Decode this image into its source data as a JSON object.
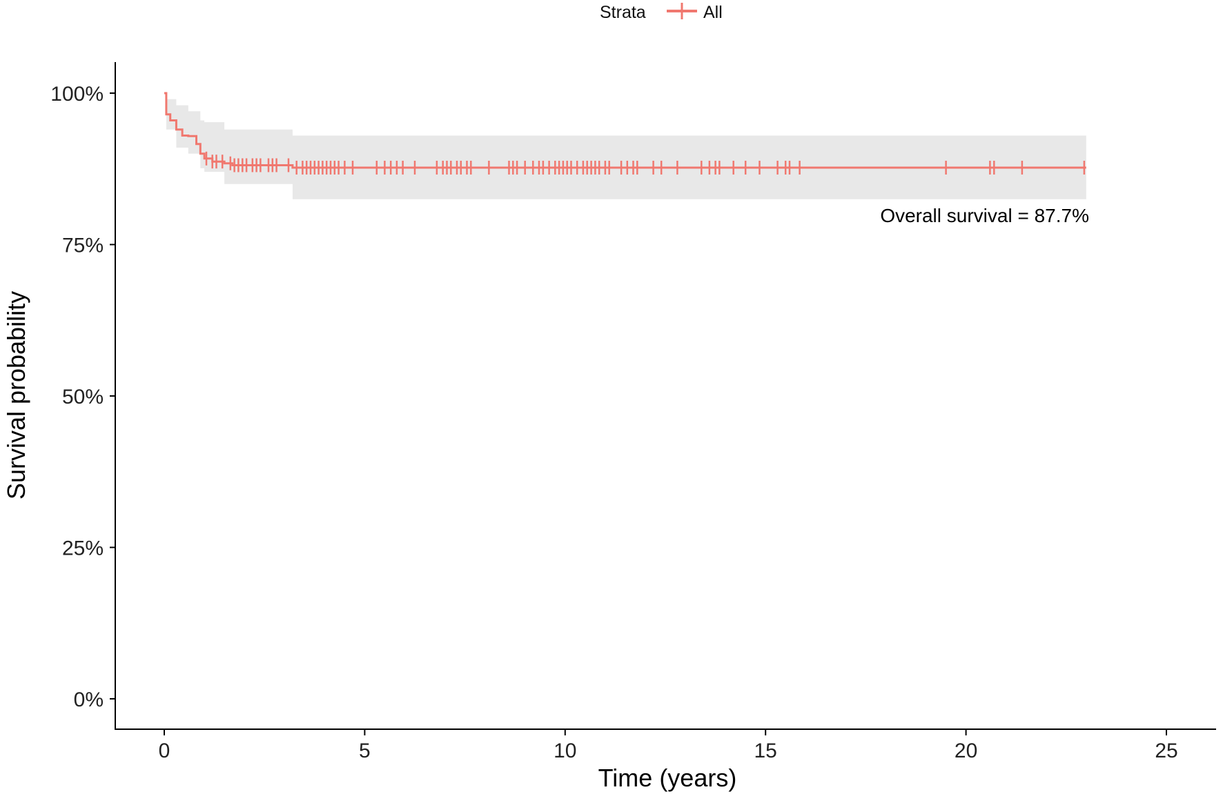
{
  "chart_data": {
    "type": "line",
    "subtype": "kaplan-meier",
    "xlabel": "Time (years)",
    "ylabel": "Survival probability",
    "xlim": [
      -1.2,
      26.2
    ],
    "ylim": [
      0,
      1
    ],
    "x_ticks": [
      0,
      5,
      10,
      15,
      20,
      25
    ],
    "y_ticks": [
      0,
      0.25,
      0.5,
      0.75,
      1.0
    ],
    "y_tick_labels": [
      "0%",
      "25%",
      "50%",
      "75%",
      "100%"
    ],
    "grid": false,
    "legend": {
      "title": "Strata",
      "position": "top",
      "entries": [
        "All"
      ]
    },
    "annotation": "Overall survival = 87.7%",
    "colors": {
      "line": "#F0786F",
      "ci_band": "#E8E8E8",
      "axis": "#000000"
    },
    "series": [
      {
        "name": "All",
        "steps": [
          [
            0.0,
            1.0
          ],
          [
            0.05,
            0.965
          ],
          [
            0.15,
            0.955
          ],
          [
            0.3,
            0.94
          ],
          [
            0.45,
            0.93
          ],
          [
            0.6,
            0.929
          ],
          [
            0.8,
            0.916
          ],
          [
            0.9,
            0.9
          ],
          [
            1.0,
            0.892
          ],
          [
            1.2,
            0.887
          ],
          [
            1.5,
            0.884
          ],
          [
            1.7,
            0.881
          ],
          [
            3.2,
            0.877
          ],
          [
            23.0,
            0.877
          ]
        ],
        "ci_steps": [
          [
            0.0,
            1.0,
            1.0
          ],
          [
            0.05,
            0.99,
            0.94
          ],
          [
            0.3,
            0.98,
            0.91
          ],
          [
            0.6,
            0.97,
            0.9
          ],
          [
            0.9,
            0.955,
            0.876
          ],
          [
            1.0,
            0.952,
            0.87
          ],
          [
            1.5,
            0.94,
            0.85
          ],
          [
            3.2,
            0.93,
            0.825
          ],
          [
            23.0,
            0.93,
            0.825
          ]
        ],
        "censor_times": [
          1.05,
          1.2,
          1.3,
          1.45,
          1.65,
          1.75,
          1.85,
          1.95,
          2.05,
          2.2,
          2.3,
          2.4,
          2.6,
          2.7,
          2.8,
          3.1,
          3.3,
          3.45,
          3.55,
          3.65,
          3.75,
          3.85,
          3.95,
          4.05,
          4.15,
          4.25,
          4.35,
          4.5,
          4.7,
          5.3,
          5.5,
          5.65,
          5.8,
          5.95,
          6.25,
          6.8,
          6.95,
          7.05,
          7.15,
          7.3,
          7.4,
          7.55,
          7.65,
          8.1,
          8.6,
          8.7,
          8.8,
          9.0,
          9.2,
          9.35,
          9.45,
          9.6,
          9.75,
          9.85,
          9.95,
          10.05,
          10.15,
          10.3,
          10.45,
          10.55,
          10.65,
          10.75,
          10.85,
          11.0,
          11.1,
          11.4,
          11.55,
          11.7,
          11.8,
          12.2,
          12.4,
          12.8,
          13.4,
          13.6,
          13.75,
          13.85,
          14.2,
          14.5,
          14.85,
          15.3,
          15.5,
          15.6,
          15.85,
          19.5,
          20.6,
          20.7,
          21.4,
          22.95
        ]
      }
    ]
  }
}
